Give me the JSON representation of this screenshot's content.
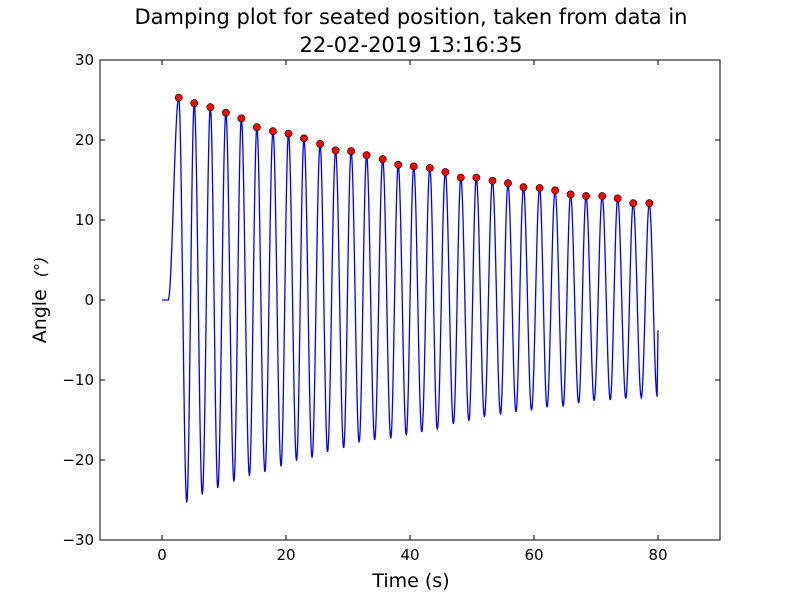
{
  "chart_data": {
    "type": "line",
    "title_line1": "Damping plot for seated position, taken from data in",
    "title_line2": "22-02-2019 13:16:35",
    "xlabel": "Time (s)",
    "ylabel": "Angle",
    "ylabel_unit": "(°)",
    "xlim": [
      -10,
      90
    ],
    "ylim": [
      -30,
      30
    ],
    "x_ticks": [
      0,
      20,
      40,
      60,
      80
    ],
    "x_tick_labels": [
      "0",
      "20",
      "40",
      "60",
      "80"
    ],
    "y_ticks": [
      -30,
      -20,
      -10,
      0,
      10,
      20,
      30
    ],
    "y_tick_labels": [
      "−30",
      "−20",
      "−10",
      "0",
      "10",
      "20",
      "30"
    ],
    "grid": false,
    "series": [
      {
        "kind": "line",
        "color": "#0000ff",
        "oscillation": {
          "start_time": 1.0,
          "end_time": 80.0,
          "period": 2.52,
          "initial_value": 0
        },
        "peaks": [
          {
            "x": 2.7,
            "y": 25.3
          },
          {
            "x": 5.2,
            "y": 24.6
          },
          {
            "x": 7.8,
            "y": 24.1
          },
          {
            "x": 10.3,
            "y": 23.4
          },
          {
            "x": 12.8,
            "y": 22.7
          },
          {
            "x": 15.3,
            "y": 21.6
          },
          {
            "x": 17.9,
            "y": 21.1
          },
          {
            "x": 20.4,
            "y": 20.8
          },
          {
            "x": 22.9,
            "y": 20.2
          },
          {
            "x": 25.5,
            "y": 19.5
          },
          {
            "x": 28.0,
            "y": 18.7
          },
          {
            "x": 30.5,
            "y": 18.6
          },
          {
            "x": 33.0,
            "y": 18.1
          },
          {
            "x": 35.6,
            "y": 17.6
          },
          {
            "x": 38.1,
            "y": 16.9
          },
          {
            "x": 40.6,
            "y": 16.7
          },
          {
            "x": 43.2,
            "y": 16.5
          },
          {
            "x": 45.7,
            "y": 16.0
          },
          {
            "x": 48.2,
            "y": 15.3
          },
          {
            "x": 50.7,
            "y": 15.3
          },
          {
            "x": 53.3,
            "y": 14.9
          },
          {
            "x": 55.8,
            "y": 14.6
          },
          {
            "x": 58.3,
            "y": 14.1
          },
          {
            "x": 60.9,
            "y": 14.0
          },
          {
            "x": 63.4,
            "y": 13.7
          },
          {
            "x": 65.9,
            "y": 13.2
          },
          {
            "x": 68.4,
            "y": 13.0
          },
          {
            "x": 71.0,
            "y": 13.0
          },
          {
            "x": 73.5,
            "y": 12.7
          },
          {
            "x": 76.0,
            "y": 12.1
          },
          {
            "x": 78.6,
            "y": 12.1
          }
        ],
        "troughs": [
          {
            "x": 4.0,
            "y": -25.3
          },
          {
            "x": 6.5,
            "y": -24.3
          },
          {
            "x": 9.0,
            "y": -23.5
          },
          {
            "x": 11.6,
            "y": -22.7
          },
          {
            "x": 14.1,
            "y": -22.0
          },
          {
            "x": 16.6,
            "y": -21.5
          },
          {
            "x": 19.2,
            "y": -20.8
          },
          {
            "x": 21.7,
            "y": -20.1
          },
          {
            "x": 24.2,
            "y": -19.7
          },
          {
            "x": 26.7,
            "y": -19.0
          },
          {
            "x": 29.3,
            "y": -18.5
          },
          {
            "x": 31.8,
            "y": -17.8
          },
          {
            "x": 34.3,
            "y": -17.5
          },
          {
            "x": 36.9,
            "y": -17.3
          },
          {
            "x": 39.4,
            "y": -16.9
          },
          {
            "x": 41.9,
            "y": -16.5
          },
          {
            "x": 44.4,
            "y": -16.2
          },
          {
            "x": 47.0,
            "y": -15.5
          },
          {
            "x": 49.5,
            "y": -15.1
          },
          {
            "x": 52.0,
            "y": -14.6
          },
          {
            "x": 54.6,
            "y": -14.3
          },
          {
            "x": 57.1,
            "y": -14.0
          },
          {
            "x": 59.6,
            "y": -13.8
          },
          {
            "x": 62.1,
            "y": -13.4
          },
          {
            "x": 64.7,
            "y": -13.3
          },
          {
            "x": 67.2,
            "y": -12.9
          },
          {
            "x": 69.7,
            "y": -12.6
          },
          {
            "x": 72.3,
            "y": -12.5
          },
          {
            "x": 74.8,
            "y": -12.3
          },
          {
            "x": 77.3,
            "y": -12.2
          }
        ],
        "final_point": {
          "x": 80.0,
          "y": -3.8
        }
      },
      {
        "kind": "scatter",
        "color": "#ff0000",
        "edge_color": "#000000",
        "source": "peaks"
      }
    ]
  }
}
